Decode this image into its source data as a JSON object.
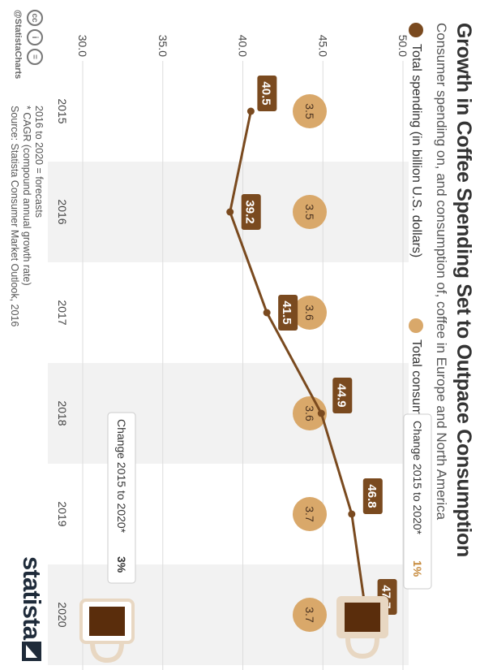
{
  "title": "Growth in Coffee Spending Set to Outpace Consumption",
  "subtitle": "Consumer spending on, and consumption of, coffee in Europe and North America",
  "legend": {
    "spending": "Total spending (in billion U.S. dollars)",
    "consumption": "Total consumption (in billion kg)"
  },
  "chart_data": {
    "type": "line",
    "categories": [
      "2015",
      "2016",
      "2017",
      "2018",
      "2019",
      "2020"
    ],
    "ylim": [
      30.0,
      50.0
    ],
    "y_ticks": [
      "30.0",
      "35.0",
      "40.0",
      "45.0",
      "50.0"
    ],
    "grid": true,
    "series": [
      {
        "name": "Total spending (in billion U.S. dollars)",
        "type": "line",
        "values": [
          40.5,
          39.2,
          41.5,
          44.9,
          46.8,
          47.7
        ],
        "labels": [
          "40.5",
          "39.2",
          "41.5",
          "44.9",
          "46.8",
          "47.7"
        ]
      },
      {
        "name": "Total consumption (in billion kg)",
        "type": "bubble-row",
        "values": [
          3.5,
          3.5,
          3.6,
          3.6,
          3.7,
          3.7
        ],
        "labels": [
          "3.5",
          "3.5",
          "3.6",
          "3.6",
          "3.7",
          "3.7"
        ]
      }
    ],
    "annotations": [
      {
        "text": "Change 2015 to 2020*",
        "value": "1%",
        "series": "consumption"
      },
      {
        "text": "Change 2015 to 2020*",
        "value": "3%",
        "series": "spending"
      }
    ]
  },
  "notes": [
    "2016 to 2020 = forecasts",
    "* CAGR (compound annual growth rate)",
    "Source: Statista Consumer Market Outlook, 2016"
  ],
  "credit": "@StatistaCharts",
  "brand": "statista",
  "colors": {
    "spending": "#7a4a1f",
    "consumption": "#d9a86a",
    "band": "#f2f2f2",
    "cup_light": "#e8d7c2",
    "cup_dark": "#5a2d0c",
    "title": "#333333"
  }
}
